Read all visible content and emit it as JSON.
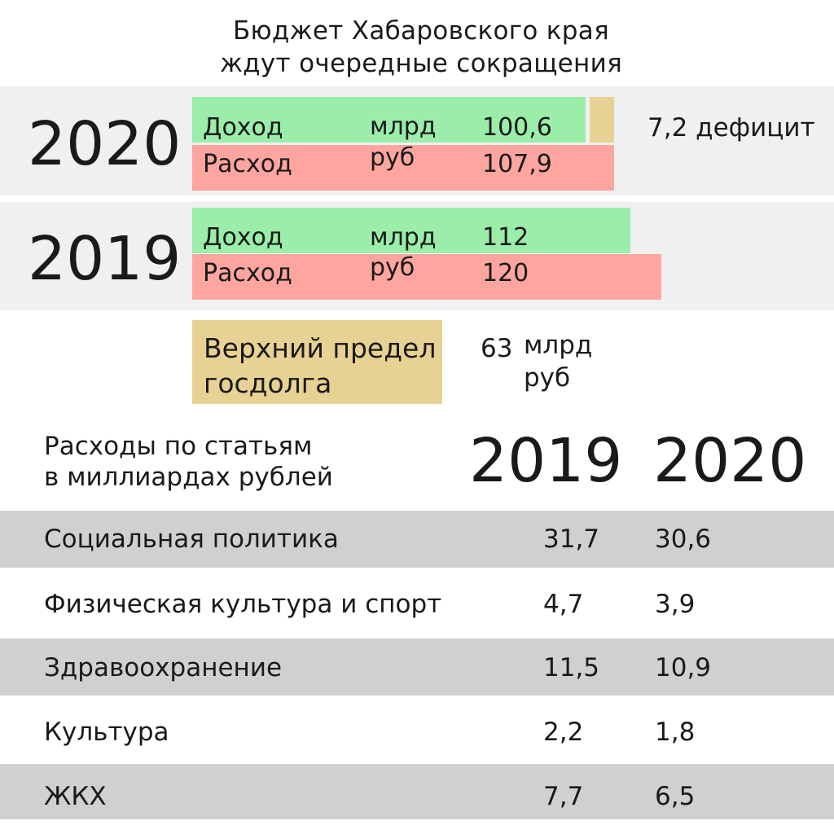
{
  "title": {
    "line1": "Бюджет Хабаровского края",
    "line2": "ждут очередные сокращения"
  },
  "budget": [
    {
      "year": "2020",
      "income_label": "Доход",
      "expense_label": "Расход",
      "unit_line1": "млрд",
      "unit_line2": "руб",
      "income_value": "100,6",
      "expense_value": "107,9",
      "deficit_text": "7,2 дефицит"
    },
    {
      "year": "2019",
      "income_label": "Доход",
      "expense_label": "Расход",
      "unit_line1": "млрд",
      "unit_line2": "руб",
      "income_value": "112",
      "expense_value": "120"
    }
  ],
  "debt": {
    "label_line1": "Верхний предел",
    "label_line2": "госдолга",
    "value": "63",
    "unit_line1": "млрд",
    "unit_line2": "руб"
  },
  "expenses_table": {
    "header_line1": "Расходы по статьям",
    "header_line2": "в миллиардах рублей",
    "col_2019": "2019",
    "col_2020": "2020",
    "rows": [
      {
        "label": "Социальная политика",
        "v2019": "31,7",
        "v2020": "30,6"
      },
      {
        "label": "Физическая культура и спорт",
        "v2019": "4,7",
        "v2020": "3,9"
      },
      {
        "label": "Здравоохранение",
        "v2019": "11,5",
        "v2020": "10,9"
      },
      {
        "label": "Культура",
        "v2019": "2,2",
        "v2020": "1,8"
      },
      {
        "label": "ЖКХ",
        "v2019": "7,7",
        "v2020": "6,5"
      }
    ]
  },
  "colors": {
    "income": "#9aeeaa",
    "expense": "#fea5a0",
    "deficit": "#e7d294",
    "band": "#f0f0f0",
    "row_shade": "#d0d0d0"
  },
  "chart_data": {
    "type": "bar",
    "orientation": "horizontal",
    "unit": "млрд руб",
    "categories": [
      "2020",
      "2019"
    ],
    "series": [
      {
        "name": "Доход",
        "values": [
          100.6,
          112
        ]
      },
      {
        "name": "Расход",
        "values": [
          107.9,
          120
        ]
      }
    ],
    "deficit_2020": 7.2,
    "debt_limit": 63,
    "expense_items": {
      "categories": [
        "Социальная политика",
        "Физическая культура и спорт",
        "Здравоохранение",
        "Культура",
        "ЖКХ"
      ],
      "series": [
        {
          "name": "2019",
          "values": [
            31.7,
            4.7,
            11.5,
            2.2,
            7.7
          ]
        },
        {
          "name": "2020",
          "values": [
            30.6,
            3.9,
            10.9,
            1.8,
            6.5
          ]
        }
      ]
    }
  }
}
